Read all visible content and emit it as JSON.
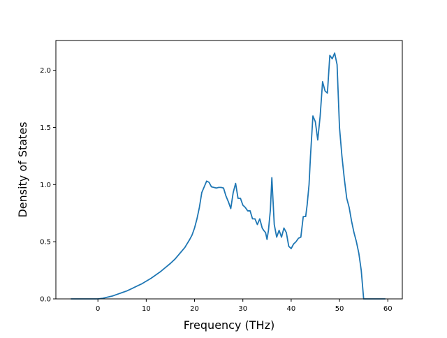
{
  "chart_data": {
    "type": "line",
    "title": "",
    "xlabel": "Frequency (THz)",
    "ylabel": "Density of States",
    "xlim": [
      -8.7,
      63
    ],
    "ylim": [
      0,
      2.26
    ],
    "x_ticks": [
      0,
      10,
      20,
      30,
      40,
      50,
      60
    ],
    "x_tick_labels": [
      "0",
      "10",
      "20",
      "30",
      "40",
      "50",
      "60"
    ],
    "y_ticks": [
      0.0,
      0.5,
      1.0,
      1.5,
      2.0
    ],
    "y_tick_labels": [
      "0.0",
      "0.5",
      "1.0",
      "1.5",
      "2.0"
    ],
    "grid": false,
    "legend": "none",
    "line_color": "#1f77b4",
    "series": [
      {
        "x": [
          -5.6,
          -3,
          0,
          1,
          2,
          3,
          4,
          5,
          6,
          7,
          8,
          9,
          10,
          11,
          12,
          13,
          14,
          15,
          16,
          17,
          18,
          19,
          19.5,
          20,
          20.5,
          21,
          21.5,
          22,
          22.5,
          23,
          23.5,
          24,
          24.5,
          25,
          25.5,
          26,
          26.5,
          27,
          27.5,
          28,
          28.5,
          29,
          29.5,
          30,
          30.5,
          31,
          31.5,
          32,
          32.5,
          33,
          33.5,
          34,
          34.3,
          34.7,
          35,
          35.3,
          35.7,
          36,
          36.5,
          37,
          37.5,
          38,
          38.5,
          39,
          39.5,
          40,
          40.5,
          41,
          41.5,
          42,
          42.5,
          43,
          43.3,
          43.7,
          44,
          44.5,
          45,
          45.5,
          46,
          46.5,
          47,
          47.5,
          48,
          48.5,
          49,
          49.5,
          50,
          50.5,
          51,
          51.5,
          52,
          52.5,
          53,
          53.5,
          54,
          54.5,
          55,
          57,
          59.5
        ],
        "y": [
          0,
          0,
          0,
          0.005,
          0.015,
          0.025,
          0.04,
          0.055,
          0.07,
          0.09,
          0.11,
          0.13,
          0.155,
          0.18,
          0.21,
          0.24,
          0.275,
          0.31,
          0.35,
          0.4,
          0.45,
          0.52,
          0.56,
          0.62,
          0.7,
          0.8,
          0.93,
          0.98,
          1.03,
          1.02,
          0.98,
          0.975,
          0.97,
          0.975,
          0.975,
          0.97,
          0.9,
          0.85,
          0.79,
          0.93,
          1.01,
          0.88,
          0.88,
          0.82,
          0.8,
          0.77,
          0.77,
          0.7,
          0.7,
          0.65,
          0.7,
          0.62,
          0.6,
          0.58,
          0.52,
          0.6,
          0.78,
          1.06,
          0.65,
          0.54,
          0.6,
          0.54,
          0.62,
          0.58,
          0.46,
          0.44,
          0.48,
          0.5,
          0.53,
          0.54,
          0.72,
          0.72,
          0.82,
          1.0,
          1.25,
          1.6,
          1.55,
          1.39,
          1.6,
          1.9,
          1.82,
          1.8,
          2.13,
          2.1,
          2.15,
          2.05,
          1.5,
          1.25,
          1.05,
          0.88,
          0.8,
          0.68,
          0.58,
          0.5,
          0.4,
          0.25,
          0,
          0,
          0
        ]
      }
    ]
  }
}
